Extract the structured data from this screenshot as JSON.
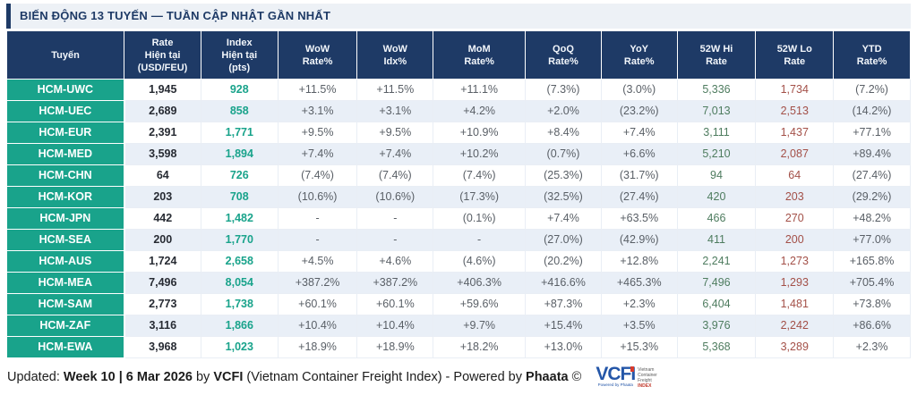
{
  "title": "BIẾN ĐỘNG 13 TUYẾN — TUẦN CẬP NHẬT GẦN NHẤT",
  "chart_data": {
    "type": "table",
    "title": "BIẾN ĐỘNG 13 TUYẾN — TUẦN CẬP NHẬT GẦN NHẤT",
    "columns": [
      {
        "id": "route",
        "lines": [
          "Tuyến"
        ]
      },
      {
        "id": "rate-current",
        "lines": [
          "Rate",
          "Hiện tại",
          "(USD/FEU)"
        ]
      },
      {
        "id": "index-current",
        "lines": [
          "Index",
          "Hiện tại",
          "(pts)"
        ]
      },
      {
        "id": "wow-rate",
        "lines": [
          "WoW",
          "Rate%"
        ]
      },
      {
        "id": "wow-idx",
        "lines": [
          "WoW",
          "Idx%"
        ]
      },
      {
        "id": "mom-rate",
        "lines": [
          "MoM",
          "Rate%"
        ]
      },
      {
        "id": "qoq-rate",
        "lines": [
          "QoQ",
          "Rate%"
        ]
      },
      {
        "id": "yoy-rate",
        "lines": [
          "YoY",
          "Rate%"
        ]
      },
      {
        "id": "52w-hi-rate",
        "lines": [
          "52W Hi",
          "Rate"
        ]
      },
      {
        "id": "52w-lo-rate",
        "lines": [
          "52W Lo",
          "Rate"
        ]
      },
      {
        "id": "ytd-rate",
        "lines": [
          "YTD",
          "Rate%"
        ]
      }
    ],
    "rows": [
      {
        "route": "HCM-UWC",
        "cells": [
          "1,945",
          "928",
          "+11.5%",
          "+11.5%",
          "+11.1%",
          "(7.3%)",
          "(3.0%)",
          "5,336",
          "1,734",
          "(7.2%)"
        ]
      },
      {
        "route": "HCM-UEC",
        "cells": [
          "2,689",
          "858",
          "+3.1%",
          "+3.1%",
          "+4.2%",
          "+2.0%",
          "(23.2%)",
          "7,013",
          "2,513",
          "(14.2%)"
        ]
      },
      {
        "route": "HCM-EUR",
        "cells": [
          "2,391",
          "1,771",
          "+9.5%",
          "+9.5%",
          "+10.9%",
          "+8.4%",
          "+7.4%",
          "3,111",
          "1,437",
          "+77.1%"
        ]
      },
      {
        "route": "HCM-MED",
        "cells": [
          "3,598",
          "1,894",
          "+7.4%",
          "+7.4%",
          "+10.2%",
          "(0.7%)",
          "+6.6%",
          "5,210",
          "2,087",
          "+89.4%"
        ]
      },
      {
        "route": "HCM-CHN",
        "cells": [
          "64",
          "726",
          "(7.4%)",
          "(7.4%)",
          "(7.4%)",
          "(25.3%)",
          "(31.7%)",
          "94",
          "64",
          "(27.4%)"
        ]
      },
      {
        "route": "HCM-KOR",
        "cells": [
          "203",
          "708",
          "(10.6%)",
          "(10.6%)",
          "(17.3%)",
          "(32.5%)",
          "(27.4%)",
          "420",
          "203",
          "(29.2%)"
        ]
      },
      {
        "route": "HCM-JPN",
        "cells": [
          "442",
          "1,482",
          "-",
          "-",
          "(0.1%)",
          "+7.4%",
          "+63.5%",
          "466",
          "270",
          "+48.2%"
        ]
      },
      {
        "route": "HCM-SEA",
        "cells": [
          "200",
          "1,770",
          "-",
          "-",
          "-",
          "(27.0%)",
          "(42.9%)",
          "411",
          "200",
          "+77.0%"
        ]
      },
      {
        "route": "HCM-AUS",
        "cells": [
          "1,724",
          "2,658",
          "+4.5%",
          "+4.6%",
          "(4.6%)",
          "(20.2%)",
          "+12.8%",
          "2,241",
          "1,273",
          "+165.8%"
        ]
      },
      {
        "route": "HCM-MEA",
        "cells": [
          "7,496",
          "8,054",
          "+387.2%",
          "+387.2%",
          "+406.3%",
          "+416.6%",
          "+465.3%",
          "7,496",
          "1,293",
          "+705.4%"
        ]
      },
      {
        "route": "HCM-SAM",
        "cells": [
          "2,773",
          "1,738",
          "+60.1%",
          "+60.1%",
          "+59.6%",
          "+87.3%",
          "+2.3%",
          "6,404",
          "1,481",
          "+73.8%"
        ]
      },
      {
        "route": "HCM-ZAF",
        "cells": [
          "3,116",
          "1,866",
          "+10.4%",
          "+10.4%",
          "+9.7%",
          "+15.4%",
          "+3.5%",
          "3,976",
          "2,242",
          "+86.6%"
        ]
      },
      {
        "route": "HCM-EWA",
        "cells": [
          "3,968",
          "1,023",
          "+18.9%",
          "+18.9%",
          "+18.2%",
          "+13.0%",
          "+15.3%",
          "5,368",
          "3,289",
          "+2.3%"
        ]
      }
    ]
  },
  "footer": {
    "segments": [
      {
        "t": "Updated: ",
        "b": 0
      },
      {
        "t": "Week 10 | 6 Mar 2026",
        "b": 1
      },
      {
        "t": " by ",
        "b": 0
      },
      {
        "t": "VCFI",
        "b": 1
      },
      {
        "t": " (Vietnam Container Freight Index) - Powered by ",
        "b": 0
      },
      {
        "t": "Phaata",
        "b": 1
      },
      {
        "t": " ©",
        "b": 0
      }
    ]
  },
  "logo": {
    "text": "VCFI",
    "tagline": [
      "Vietnam",
      "Container",
      "Freight",
      "INDEX"
    ],
    "sub": "Powered by Phaata"
  },
  "colors": {
    "header_navy": "#1e3a66",
    "route_teal": "#19a38b",
    "row_alt_blue": "#e9eff7",
    "hi_green": "#4e7c5f",
    "lo_red": "#a35048",
    "pct_gray": "#595f66",
    "logo_blue": "#2456a8",
    "logo_red": "#d93a2b"
  }
}
